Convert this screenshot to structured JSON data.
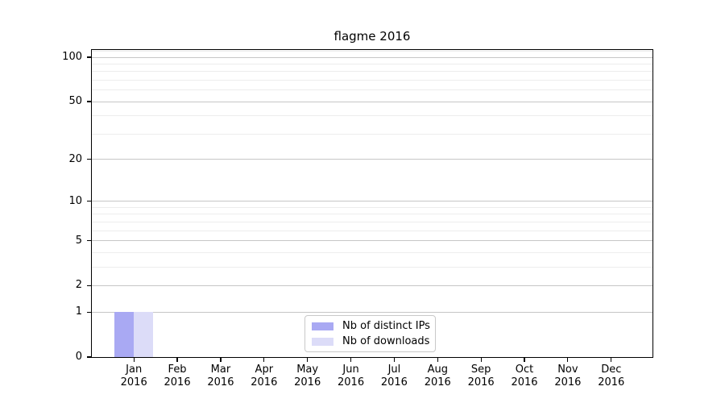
{
  "title": "flagme 2016",
  "chart_data": {
    "type": "bar",
    "title": "flagme 2016",
    "categories": [
      "Jan 2016",
      "Feb 2016",
      "Mar 2016",
      "Apr 2016",
      "May 2016",
      "Jun 2016",
      "Jul 2016",
      "Aug 2016",
      "Sep 2016",
      "Oct 2016",
      "Nov 2016",
      "Dec 2016"
    ],
    "x_tick_months": [
      "Jan",
      "Feb",
      "Mar",
      "Apr",
      "May",
      "Jun",
      "Jul",
      "Aug",
      "Sep",
      "Oct",
      "Nov",
      "Dec"
    ],
    "x_tick_year": "2016",
    "series": [
      {
        "name": "Nb of distinct IPs",
        "color": "#a9a9f3",
        "values": [
          1,
          0,
          0,
          0,
          0,
          0,
          0,
          0,
          0,
          0,
          0,
          0
        ]
      },
      {
        "name": "Nb of downloads",
        "color": "#dcdcf8",
        "values": [
          1,
          0,
          0,
          0,
          0,
          0,
          0,
          0,
          0,
          0,
          0,
          0
        ]
      }
    ],
    "xlabel": "",
    "ylabel": "",
    "yscale": "log1p",
    "ylim": [
      0,
      115
    ],
    "y_major_ticks": [
      0,
      1,
      2,
      5,
      10,
      20,
      50,
      100
    ],
    "y_minor_gridlines": [
      3,
      4,
      6,
      7,
      8,
      9,
      30,
      40,
      60,
      70,
      80,
      90,
      110
    ],
    "grid": true,
    "legend_position": "lower center",
    "colors": {
      "major_grid": "#c6c6c6",
      "minor_grid": "#ededed",
      "spine": "#000000",
      "background": "#ffffff"
    }
  }
}
